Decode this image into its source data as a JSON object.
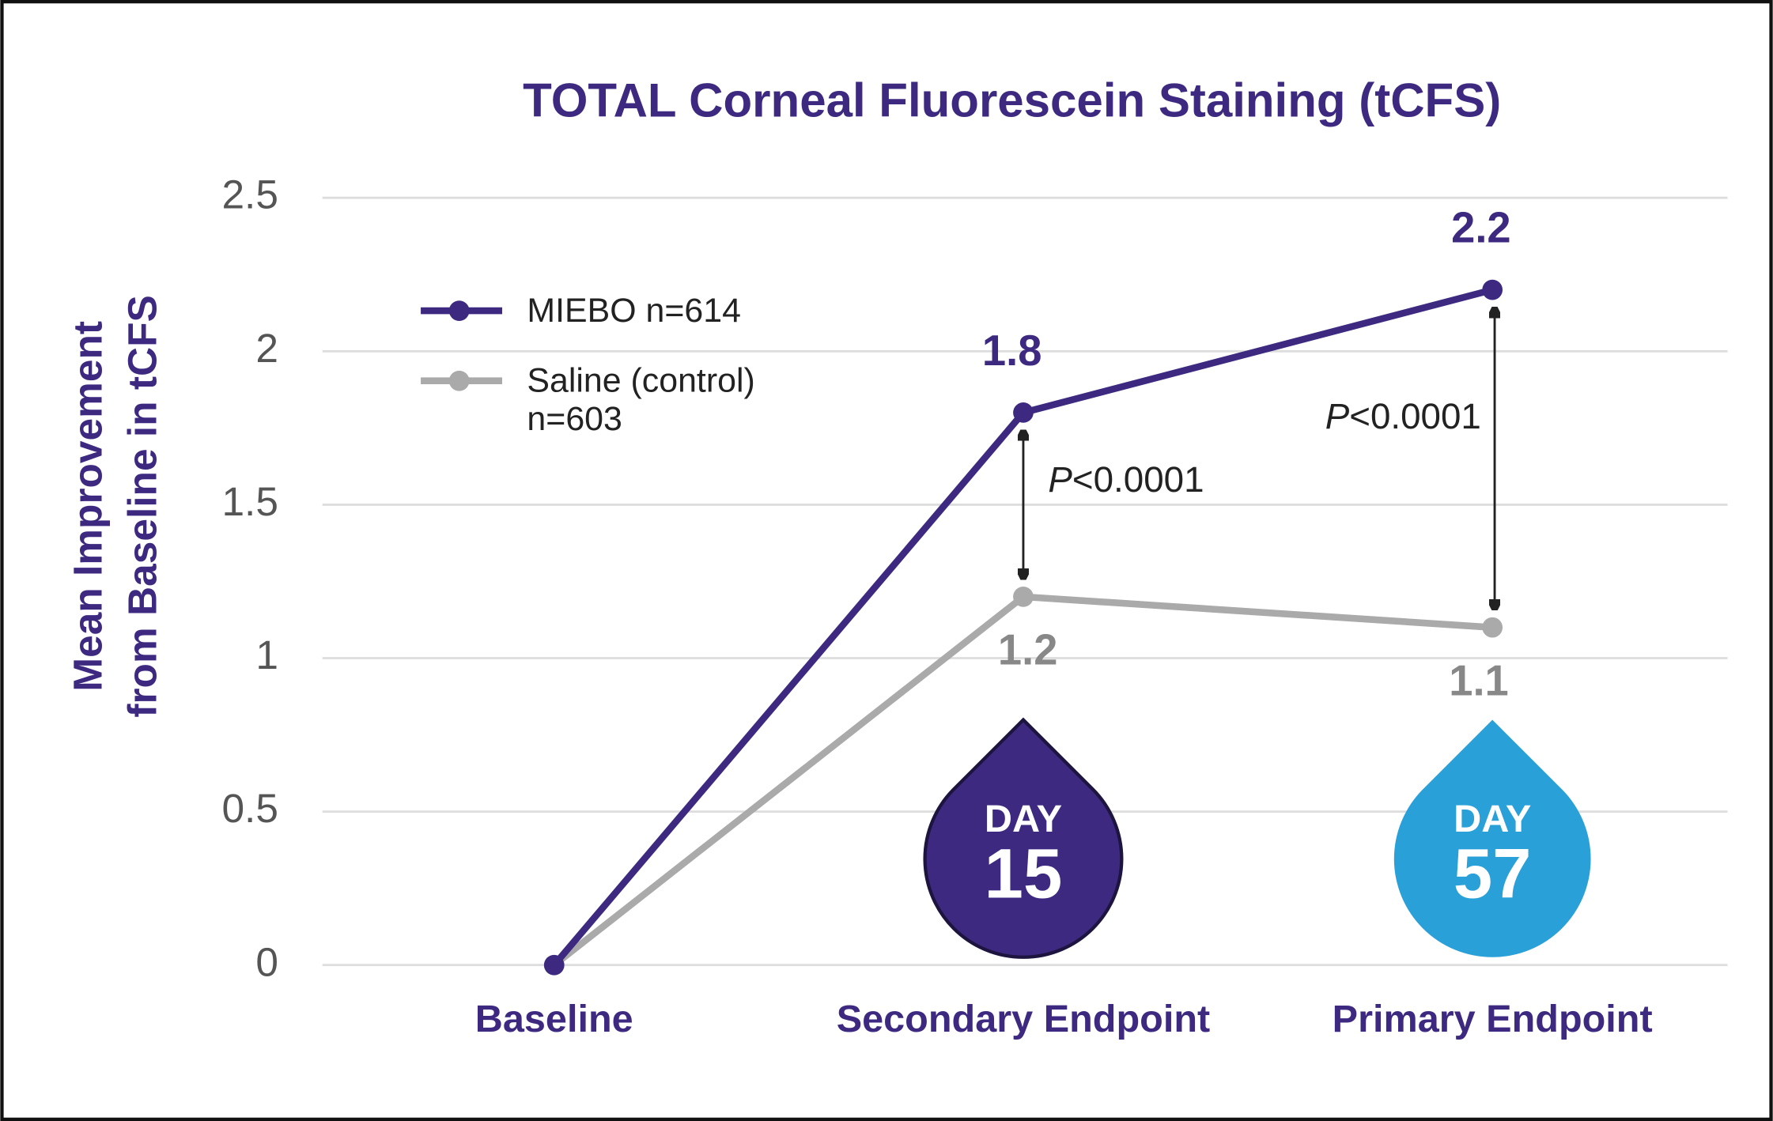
{
  "chart_data": {
    "type": "line",
    "title": "TOTAL Corneal Fluorescein Staining (tCFS)",
    "y_label": "Mean Improvement\nfrom Baseline  in tCFS",
    "categories": [
      "Baseline",
      "Secondary Endpoint",
      "Primary Endpoint"
    ],
    "series": [
      {
        "name": "MIEBO n=614",
        "color": "#3d2a80",
        "values": [
          0,
          1.8,
          2.2
        ],
        "value_labels": [
          null,
          "1.8",
          "2.2"
        ]
      },
      {
        "name": "Saline (control)\nn=603",
        "color": "#aaaaaa",
        "values": [
          0,
          1.2,
          1.1
        ],
        "value_labels": [
          null,
          "1.2",
          "1.1"
        ]
      }
    ],
    "ylim": [
      0,
      2.5
    ],
    "yticks": [
      0,
      0.5,
      1,
      1.5,
      2,
      2.5
    ],
    "grid": true,
    "legend": "upper left",
    "annotations": [
      "P<0.0001",
      "P<0.0001"
    ],
    "badges": [
      {
        "top": "DAY",
        "bottom": "15",
        "color": "#3d2a80"
      },
      {
        "top": "DAY",
        "bottom": "57",
        "color": "#2aa0d8"
      }
    ]
  }
}
